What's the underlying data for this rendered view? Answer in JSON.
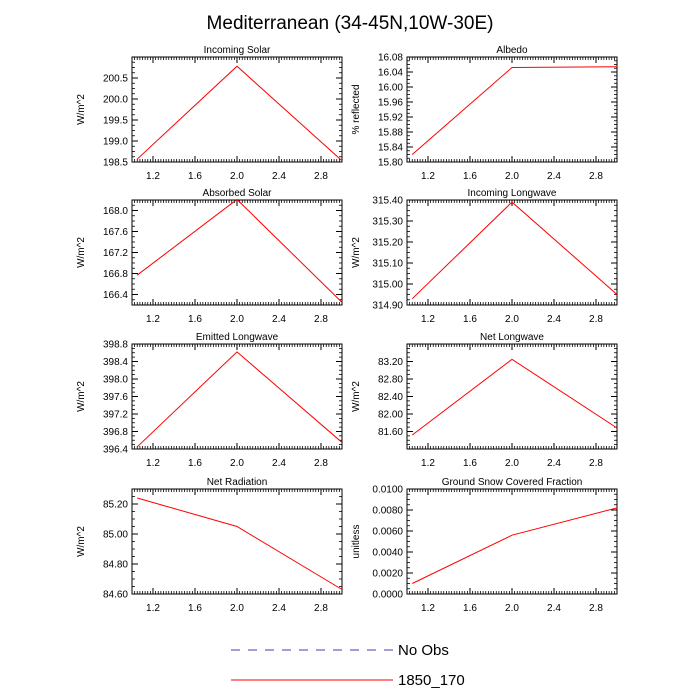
{
  "page": {
    "title": "Mediterranean (34-45N,10W-30E)"
  },
  "legend": [
    {
      "label": "No Obs",
      "color": "#3f3faf",
      "dash": true
    },
    {
      "label": "1850_170",
      "color": "#ff0000",
      "dash": false
    }
  ],
  "chart_data": [
    {
      "type": "line",
      "title": "Incoming Solar",
      "ylabel": "W/m^2",
      "xlim": [
        1,
        3
      ],
      "ylim": [
        198.5,
        201.0
      ],
      "yticks": [
        198.5,
        199.0,
        199.5,
        200.0,
        200.5
      ],
      "ytick_labels": [
        "198.5",
        "199.0",
        "199.5",
        "200.0",
        "200.5"
      ],
      "xticks": [
        1.2,
        1.6,
        2.0,
        2.4,
        2.8
      ],
      "xtick_labels": [
        "1.2",
        "1.6",
        "2.0",
        "2.4",
        "2.8"
      ],
      "series": [
        {
          "name": "1850_170",
          "color": "#ff0000",
          "x": [
            1.05,
            2.0,
            3.0
          ],
          "y": [
            198.57,
            200.78,
            198.53
          ]
        }
      ]
    },
    {
      "type": "line",
      "title": "Albedo",
      "ylabel": "% reflected",
      "xlim": [
        1,
        3
      ],
      "ylim": [
        15.8,
        16.08
      ],
      "yticks": [
        15.8,
        15.84,
        15.88,
        15.92,
        15.96,
        16.0,
        16.04,
        16.08
      ],
      "ytick_labels": [
        "15.80",
        "15.84",
        "15.88",
        "15.92",
        "15.96",
        "16.00",
        "16.04",
        "16.08"
      ],
      "xticks": [
        1.2,
        1.6,
        2.0,
        2.4,
        2.8
      ],
      "xtick_labels": [
        "1.2",
        "1.6",
        "2.0",
        "2.4",
        "2.8"
      ],
      "series": [
        {
          "name": "1850_170",
          "color": "#ff0000",
          "x": [
            1.05,
            2.0,
            3.0
          ],
          "y": [
            15.82,
            16.052,
            16.054
          ]
        }
      ]
    },
    {
      "type": "line",
      "title": "Absorbed Solar",
      "ylabel": "W/m^2",
      "xlim": [
        1,
        3
      ],
      "ylim": [
        166.2,
        168.2
      ],
      "yticks": [
        166.4,
        166.8,
        167.2,
        167.6,
        168.0
      ],
      "ytick_labels": [
        "166.4",
        "166.8",
        "167.2",
        "167.6",
        "168.0"
      ],
      "xticks": [
        1.2,
        1.6,
        2.0,
        2.4,
        2.8
      ],
      "xtick_labels": [
        "1.2",
        "1.6",
        "2.0",
        "2.4",
        "2.8"
      ],
      "series": [
        {
          "name": "1850_170",
          "color": "#ff0000",
          "x": [
            1.05,
            2.0,
            3.0
          ],
          "y": [
            166.77,
            168.21,
            166.25
          ]
        }
      ]
    },
    {
      "type": "line",
      "title": "Incoming Longwave",
      "ylabel": "W/m^2",
      "xlim": [
        1,
        3
      ],
      "ylim": [
        314.9,
        315.4
      ],
      "yticks": [
        314.9,
        315.0,
        315.1,
        315.2,
        315.3,
        315.4
      ],
      "ytick_labels": [
        "314.90",
        "315.00",
        "315.10",
        "315.20",
        "315.30",
        "315.40"
      ],
      "xticks": [
        1.2,
        1.6,
        2.0,
        2.4,
        2.8
      ],
      "xtick_labels": [
        "1.2",
        "1.6",
        "2.0",
        "2.4",
        "2.8"
      ],
      "series": [
        {
          "name": "1850_170",
          "color": "#ff0000",
          "x": [
            1.05,
            2.0,
            3.0
          ],
          "y": [
            314.93,
            315.39,
            314.95
          ]
        }
      ]
    },
    {
      "type": "line",
      "title": "Emitted Longwave",
      "ylabel": "W/m^2",
      "xlim": [
        1,
        3
      ],
      "ylim": [
        396.4,
        398.8
      ],
      "yticks": [
        396.4,
        396.8,
        397.2,
        397.6,
        398.0,
        398.4,
        398.8
      ],
      "ytick_labels": [
        "396.4",
        "396.8",
        "397.2",
        "397.6",
        "398.0",
        "398.4",
        "398.8"
      ],
      "xticks": [
        1.2,
        1.6,
        2.0,
        2.4,
        2.8
      ],
      "xtick_labels": [
        "1.2",
        "1.6",
        "2.0",
        "2.4",
        "2.8"
      ],
      "series": [
        {
          "name": "1850_170",
          "color": "#ff0000",
          "x": [
            1.05,
            2.0,
            3.0
          ],
          "y": [
            396.45,
            398.62,
            396.55
          ]
        }
      ]
    },
    {
      "type": "line",
      "title": "Net Longwave",
      "ylabel": "W/m^2",
      "xlim": [
        1,
        3
      ],
      "ylim": [
        81.2,
        83.6
      ],
      "yticks": [
        81.6,
        82.0,
        82.4,
        82.8,
        83.2
      ],
      "ytick_labels": [
        "81.60",
        "82.00",
        "82.40",
        "82.80",
        "83.20"
      ],
      "xticks": [
        1.2,
        1.6,
        2.0,
        2.4,
        2.8
      ],
      "xtick_labels": [
        "1.2",
        "1.6",
        "2.0",
        "2.4",
        "2.8"
      ],
      "series": [
        {
          "name": "1850_170",
          "color": "#ff0000",
          "x": [
            1.05,
            2.0,
            3.0
          ],
          "y": [
            81.52,
            83.25,
            81.68
          ]
        }
      ]
    },
    {
      "type": "line",
      "title": "Net Radiation",
      "ylabel": "W/m^2",
      "xlim": [
        1,
        3
      ],
      "ylim": [
        84.6,
        85.3
      ],
      "yticks": [
        84.6,
        84.8,
        85.0,
        85.2
      ],
      "ytick_labels": [
        "84.60",
        "84.80",
        "85.00",
        "85.20"
      ],
      "xticks": [
        1.2,
        1.6,
        2.0,
        2.4,
        2.8
      ],
      "xtick_labels": [
        "1.2",
        "1.6",
        "2.0",
        "2.4",
        "2.8"
      ],
      "series": [
        {
          "name": "1850_170",
          "color": "#ff0000",
          "x": [
            1.05,
            2.0,
            3.0
          ],
          "y": [
            85.24,
            85.05,
            84.63
          ]
        }
      ]
    },
    {
      "type": "line",
      "title": "Ground Snow Covered Fraction",
      "ylabel": "unitless",
      "xlim": [
        1,
        3
      ],
      "ylim": [
        0.0,
        0.01
      ],
      "yticks": [
        0.0,
        0.002,
        0.004,
        0.006,
        0.008,
        0.01
      ],
      "ytick_labels": [
        "0.0000",
        "0.0020",
        "0.0040",
        "0.0060",
        "0.0080",
        "0.0100"
      ],
      "xticks": [
        1.2,
        1.6,
        2.0,
        2.4,
        2.8
      ],
      "xtick_labels": [
        "1.2",
        "1.6",
        "2.0",
        "2.4",
        "2.8"
      ],
      "series": [
        {
          "name": "1850_170",
          "color": "#ff0000",
          "x": [
            1.05,
            2.0,
            3.0
          ],
          "y": [
            0.001,
            0.0056,
            0.0082
          ]
        }
      ]
    }
  ]
}
